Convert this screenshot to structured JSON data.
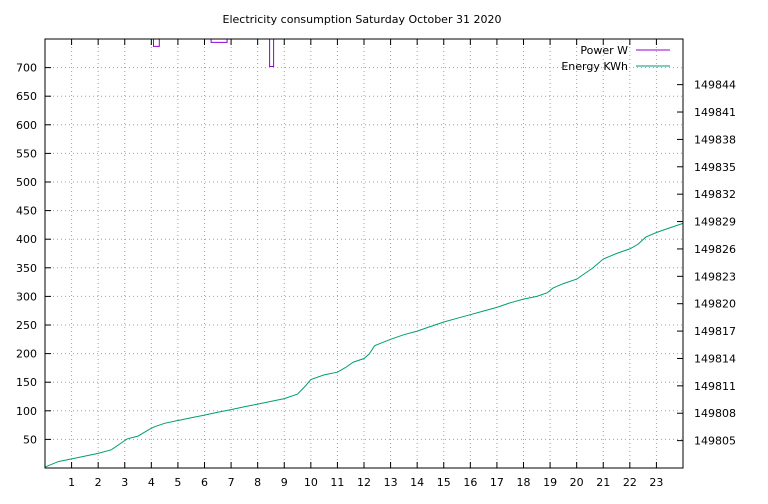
{
  "chart_data": {
    "type": "line",
    "title": "Electricity consumption Saturday October 31 2020",
    "xlabel": "",
    "ylabel": "",
    "y2label": "",
    "xlim": [
      0,
      24
    ],
    "ylim": [
      0,
      750
    ],
    "y2lim": [
      149802,
      149849
    ],
    "x_ticks": [
      1,
      2,
      3,
      4,
      5,
      6,
      7,
      8,
      9,
      10,
      11,
      12,
      13,
      14,
      15,
      16,
      17,
      18,
      19,
      20,
      21,
      22,
      23
    ],
    "y_ticks": [
      50,
      100,
      150,
      200,
      250,
      300,
      350,
      400,
      450,
      500,
      550,
      600,
      650,
      700
    ],
    "y2_ticks": [
      149805,
      149808,
      149811,
      149814,
      149817,
      149820,
      149823,
      149826,
      149829,
      149832,
      149835,
      149838,
      149841,
      149844
    ],
    "grid": true,
    "legend_position": "top-right",
    "series": [
      {
        "name": "Power W",
        "axis": "y",
        "color": "#9400d3",
        "x": [
          4.08,
          4.08,
          4.3,
          4.3,
          6.25,
          6.25,
          6.85,
          6.85,
          8.45,
          8.45,
          8.6,
          8.6
        ],
        "y": [
          750,
          737,
          737,
          750,
          750,
          744,
          744,
          750,
          750,
          702,
          702,
          750
        ],
        "segments": [
          [
            0,
            3
          ],
          [
            4,
            7
          ],
          [
            8,
            11
          ]
        ]
      },
      {
        "name": "Energy KWh",
        "axis": "y2",
        "color": "#009e73",
        "x": [
          0,
          0.5,
          1,
          1.5,
          2,
          2.5,
          2.9,
          3.1,
          3.5,
          3.9,
          4.1,
          4.5,
          5,
          5.5,
          6,
          6.5,
          7,
          7.5,
          8,
          8.5,
          9,
          9.5,
          9.8,
          10,
          10.5,
          11,
          11.3,
          11.6,
          12,
          12.2,
          12.4,
          13,
          13.5,
          14,
          14.5,
          15,
          15.5,
          16,
          16.5,
          17,
          17.5,
          18,
          18.5,
          18.9,
          19.1,
          19.5,
          20,
          20.3,
          20.6,
          21,
          21.5,
          22,
          22.3,
          22.6,
          23,
          23.5,
          24
        ],
        "y": [
          149802.1,
          149802.7,
          149803,
          149803.3,
          149803.6,
          149804,
          149804.8,
          149805.2,
          149805.5,
          149806.2,
          149806.5,
          149806.9,
          149807.2,
          149807.5,
          149807.8,
          149808.1,
          149808.4,
          149808.7,
          149809.0,
          149809.3,
          149809.6,
          149810.1,
          149811.0,
          149811.7,
          149812.2,
          149812.5,
          149813.0,
          149813.6,
          149814.0,
          149814.5,
          149815.4,
          149816.1,
          149816.6,
          149817.0,
          149817.5,
          149818.0,
          149818.4,
          149818.8,
          149819.2,
          149819.6,
          149820.1,
          149820.5,
          149820.8,
          149821.2,
          149821.7,
          149822.2,
          149822.7,
          149823.3,
          149823.9,
          149824.9,
          149825.5,
          149826.0,
          149826.5,
          149827.3,
          149827.8,
          149828.3,
          149828.8
        ]
      }
    ]
  }
}
